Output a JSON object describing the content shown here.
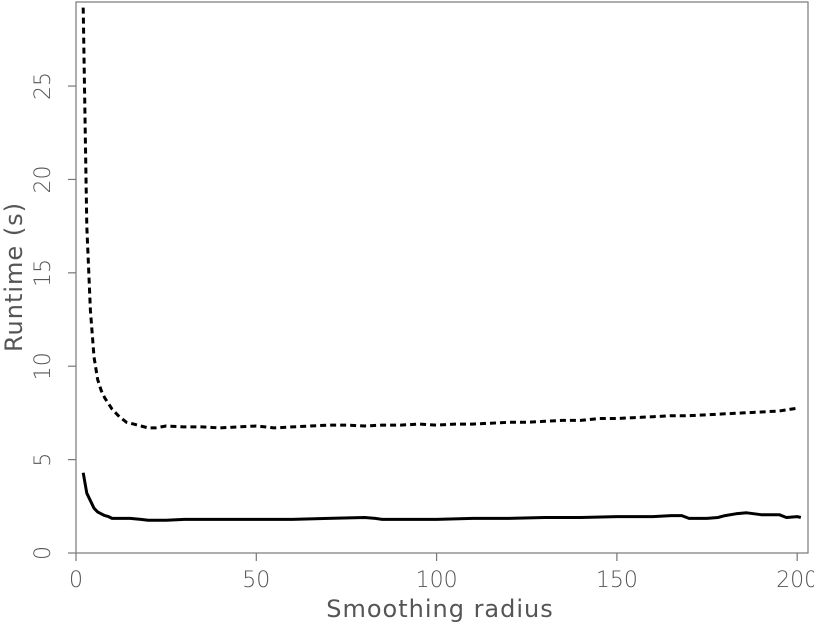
{
  "chart_data": {
    "type": "line",
    "title": "",
    "xlabel": "Smoothing radius",
    "ylabel": "Runtime (s)",
    "xlim": [
      0,
      203
    ],
    "ylim": [
      0,
      29.5
    ],
    "xticks": [
      0,
      50,
      100,
      150,
      200
    ],
    "yticks": [
      0,
      5,
      10,
      15,
      20,
      25
    ],
    "xtick_labels": [
      "0",
      "50",
      "100",
      "150",
      "200"
    ],
    "ytick_labels": [
      "0",
      "5",
      "10",
      "15",
      "20",
      "25"
    ],
    "grid": false,
    "series": [
      {
        "style": "dashed",
        "color": "#000000",
        "x": [
          2,
          3,
          4,
          5,
          6,
          7,
          8,
          10,
          12,
          14,
          16,
          18,
          20,
          22,
          25,
          30,
          35,
          40,
          45,
          50,
          55,
          60,
          65,
          70,
          75,
          80,
          85,
          90,
          95,
          100,
          105,
          110,
          115,
          120,
          125,
          130,
          135,
          140,
          145,
          150,
          155,
          160,
          165,
          170,
          175,
          180,
          185,
          190,
          195,
          200
        ],
        "y": [
          29.2,
          17.5,
          13.0,
          10.5,
          9.3,
          8.7,
          8.3,
          7.7,
          7.3,
          7.0,
          6.9,
          6.8,
          6.7,
          6.7,
          6.8,
          6.75,
          6.75,
          6.7,
          6.75,
          6.8,
          6.7,
          6.75,
          6.8,
          6.85,
          6.85,
          6.8,
          6.85,
          6.85,
          6.9,
          6.85,
          6.9,
          6.9,
          6.95,
          7.0,
          7.0,
          7.05,
          7.1,
          7.1,
          7.2,
          7.2,
          7.25,
          7.3,
          7.35,
          7.35,
          7.4,
          7.45,
          7.5,
          7.55,
          7.6,
          7.75
        ]
      },
      {
        "style": "solid",
        "color": "#000000",
        "x": [
          2,
          3,
          4,
          5,
          6,
          7,
          8,
          9,
          10,
          12,
          15,
          18,
          20,
          25,
          30,
          40,
          50,
          60,
          70,
          80,
          83,
          85,
          90,
          100,
          110,
          120,
          130,
          140,
          150,
          160,
          165,
          168,
          170,
          175,
          178,
          180,
          183,
          186,
          190,
          195,
          197,
          200,
          201
        ],
        "y": [
          4.3,
          3.2,
          2.8,
          2.4,
          2.2,
          2.1,
          2.0,
          1.95,
          1.85,
          1.85,
          1.85,
          1.8,
          1.75,
          1.75,
          1.8,
          1.8,
          1.8,
          1.8,
          1.85,
          1.9,
          1.85,
          1.8,
          1.8,
          1.8,
          1.85,
          1.85,
          1.9,
          1.9,
          1.95,
          1.95,
          2.0,
          2.0,
          1.85,
          1.85,
          1.9,
          2.0,
          2.1,
          2.15,
          2.05,
          2.05,
          1.9,
          1.95,
          1.9
        ]
      }
    ]
  }
}
